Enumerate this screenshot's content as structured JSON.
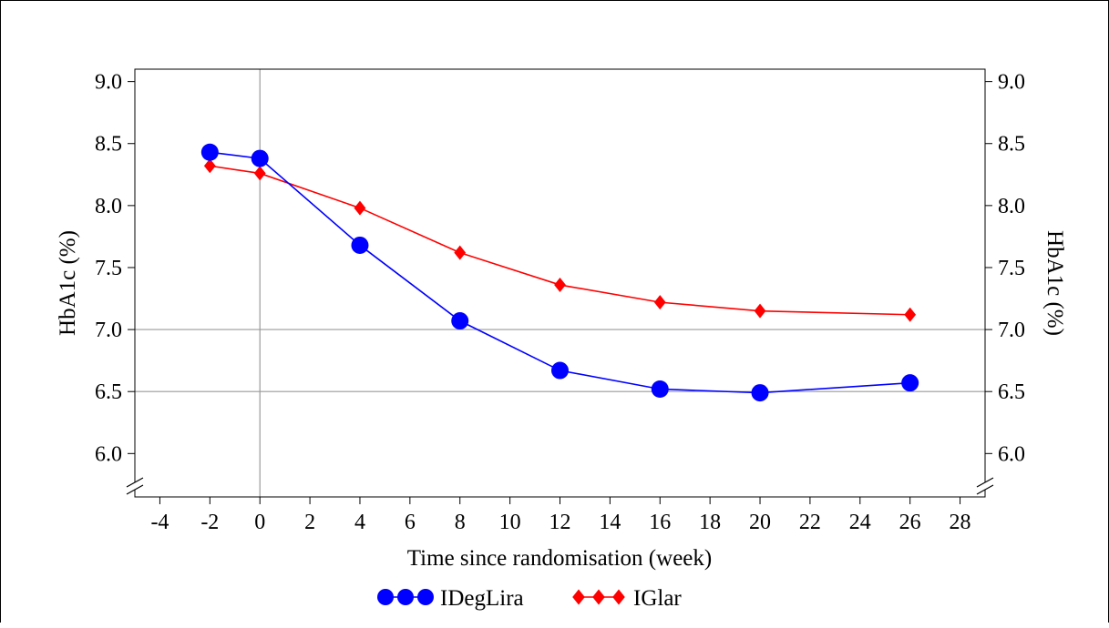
{
  "chart_data": {
    "type": "line",
    "xlabel": "Time since randomisation (week)",
    "ylabel_left": "HbA1c (%)",
    "ylabel_right": "HbA1c (%)",
    "xlim": [
      -5,
      29
    ],
    "ylim": [
      5.65,
      9.1
    ],
    "x_ticks": [
      -4,
      -2,
      0,
      2,
      4,
      6,
      8,
      10,
      12,
      14,
      16,
      18,
      20,
      22,
      24,
      26,
      28
    ],
    "y_ticks": [
      6.0,
      6.5,
      7.0,
      7.5,
      8.0,
      8.5,
      9.0
    ],
    "y_tick_labels": [
      "6.0",
      "6.5",
      "7.0",
      "7.5",
      "8.0",
      "8.5",
      "9.0"
    ],
    "reference_lines": {
      "y": [
        6.5,
        7.0
      ],
      "x": [
        0
      ]
    },
    "axis_break": true,
    "legend_position": "bottom-center",
    "series": [
      {
        "name": "IDegLira",
        "color": "#0000ff",
        "marker": "circle",
        "x": [
          -2,
          0,
          4,
          8,
          12,
          16,
          20,
          26
        ],
        "values": [
          8.43,
          8.38,
          7.68,
          7.07,
          6.67,
          6.52,
          6.49,
          6.57
        ]
      },
      {
        "name": "IGlar",
        "color": "#ff0000",
        "marker": "diamond",
        "x": [
          -2,
          0,
          4,
          8,
          12,
          16,
          20,
          26
        ],
        "values": [
          8.32,
          8.26,
          7.98,
          7.62,
          7.36,
          7.22,
          7.15,
          7.12
        ]
      }
    ]
  }
}
